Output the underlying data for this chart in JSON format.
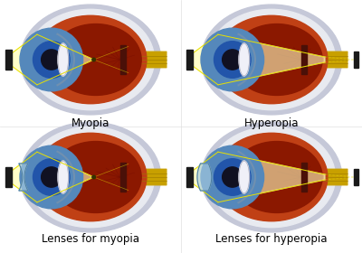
{
  "background": "#ffffff",
  "labels": [
    "Myopia",
    "Hyperopia",
    "Lenses for myopia",
    "Lenses for hyperopia"
  ],
  "label_fontsize": 8.5,
  "eye_colors": {
    "sclera_outer": "#c5c8d8",
    "sclera_inner": "#e8eaf0",
    "retina_main": "#c04015",
    "retina_dark": "#8b1800",
    "retina_edge": "#a03010",
    "iris_blue": "#5588bb",
    "iris_dark": "#2255aa",
    "pupil": "#111122",
    "cornea_fill": "#8ab0cc",
    "lens_white": "#f0f0f8",
    "optic_nerve_gold": "#c8a000",
    "fovea_dark": "#4a1008",
    "vein_color": "#7a1000",
    "light_yellow": "#fffec0",
    "ray_color": "#e8e000",
    "source_color": "#1a1a1a",
    "corrective_lens": "#a8cce0"
  }
}
